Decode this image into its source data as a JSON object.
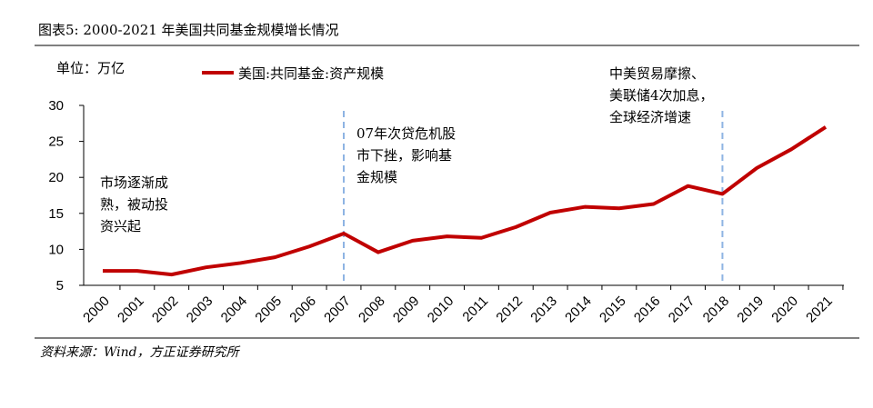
{
  "chart_data": {
    "type": "line",
    "title": "图表5:  2000-2021 年美国共同基金规模增长情况",
    "unit_label": "单位：万亿",
    "source": "资料来源：Wind，方正证券研究所",
    "categories": [
      "2000",
      "2001",
      "2002",
      "2003",
      "2004",
      "2005",
      "2006",
      "2007",
      "2008",
      "2009",
      "2010",
      "2011",
      "2012",
      "2013",
      "2014",
      "2015",
      "2016",
      "2017",
      "2018",
      "2019",
      "2020",
      "2021"
    ],
    "series": [
      {
        "name": "美国:共同基金:资产规模",
        "color": "#c00000",
        "values": [
          7.0,
          7.0,
          6.5,
          7.5,
          8.1,
          8.9,
          10.4,
          12.2,
          9.6,
          11.2,
          11.8,
          11.6,
          13.1,
          15.1,
          15.9,
          15.7,
          16.3,
          18.8,
          17.7,
          21.3,
          23.9,
          27.0
        ]
      }
    ],
    "ylim": [
      5,
      30
    ],
    "yticks": [
      5,
      10,
      15,
      20,
      25,
      30
    ],
    "reference_lines": [
      "2007",
      "2018"
    ],
    "annotations": [
      {
        "lines": [
          "市场逐渐成",
          "熟，被动投",
          "资兴起"
        ]
      },
      {
        "lines": [
          "07年次贷危机股",
          "市下挫，影响基",
          "金规模"
        ]
      },
      {
        "lines": [
          "中美贸易摩擦、",
          "美联储4次加息，",
          "全球经济增速"
        ]
      }
    ]
  }
}
